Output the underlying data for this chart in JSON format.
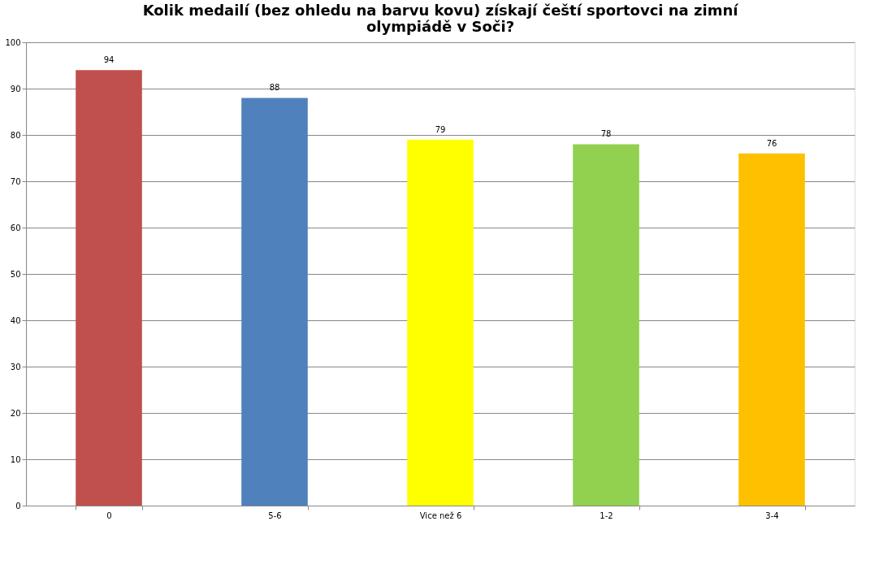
{
  "chart_data": {
    "type": "bar",
    "title": "Kolik medailí (bez ohledu na barvu kovu) získají čeští sportovci na zimní olympiádě v Soči?",
    "categories": [
      "0",
      "5-6",
      "Vice než 6",
      "1-2",
      "3-4"
    ],
    "values": [
      94,
      88,
      79,
      78,
      76
    ],
    "colors": [
      "#c0504d",
      "#4f81bd",
      "#ffff00",
      "#92d050",
      "#ffc000"
    ],
    "ylim": [
      0,
      100
    ],
    "yticks": [
      0,
      10,
      20,
      30,
      40,
      50,
      60,
      70,
      80,
      90,
      100
    ],
    "grid": "y",
    "data_labels": true
  }
}
